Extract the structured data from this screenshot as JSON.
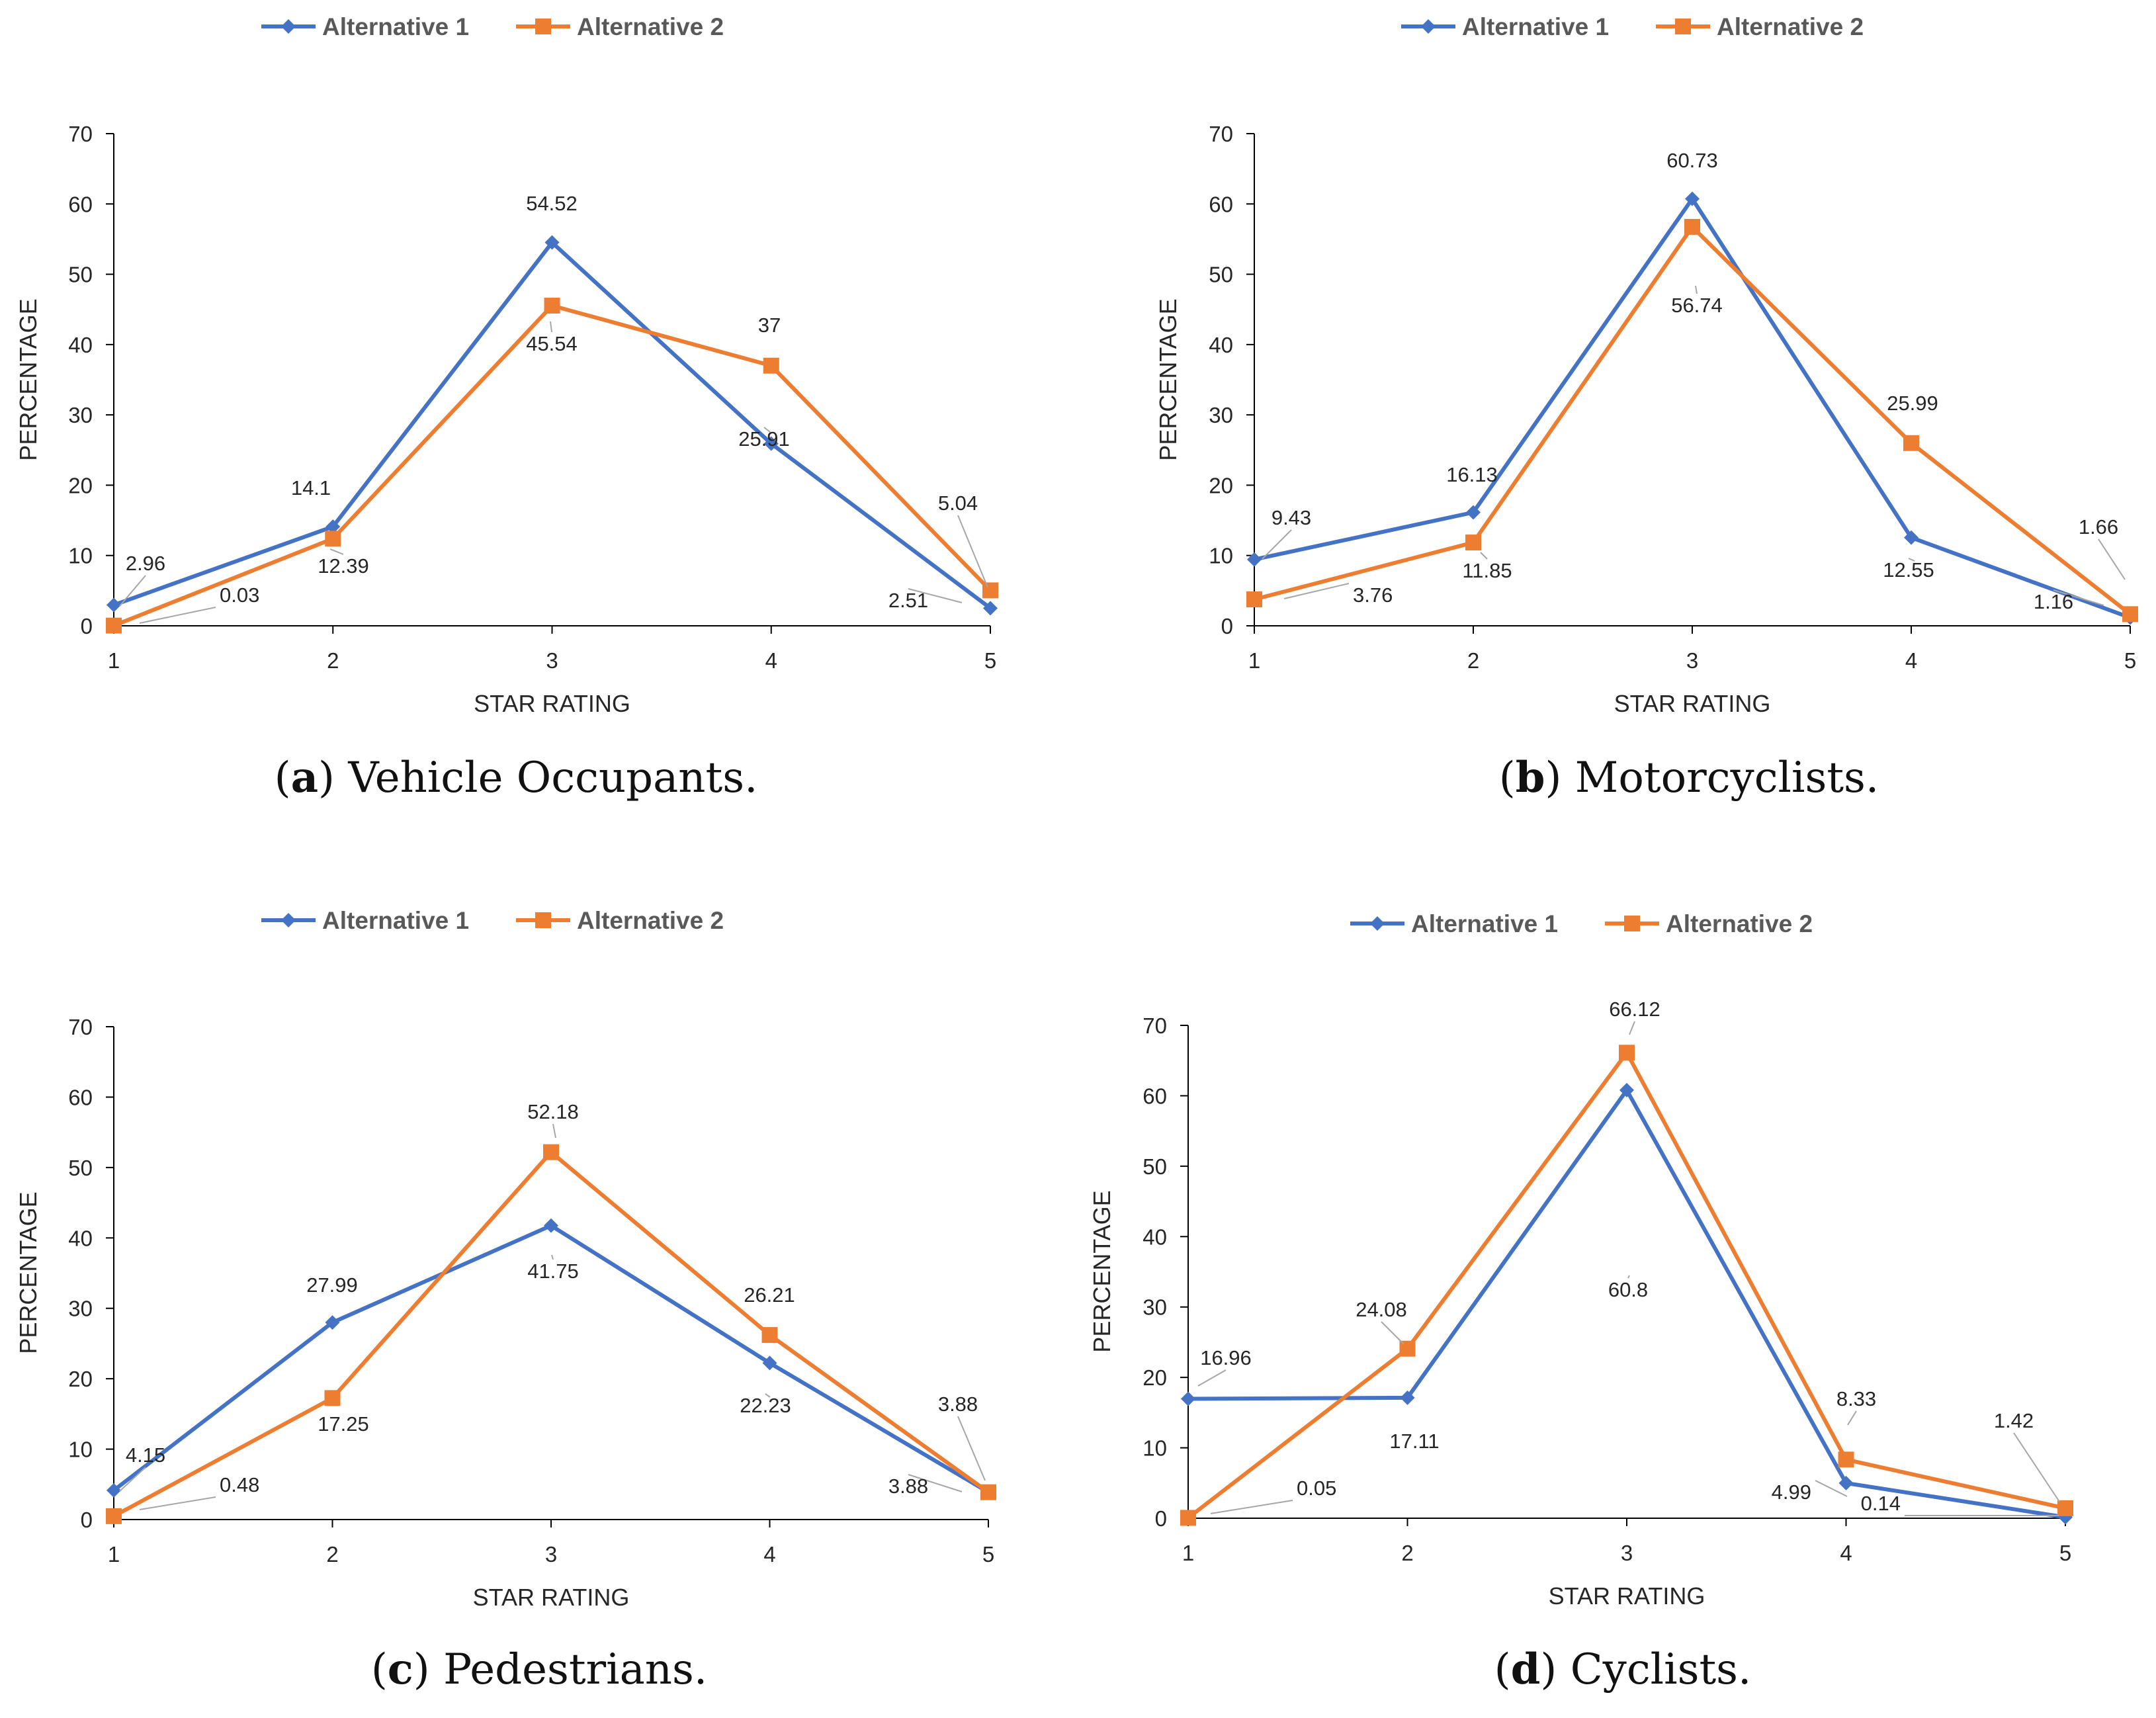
{
  "chart_data": [
    {
      "type": "line",
      "caption_letter": "a",
      "caption_text": "Vehicle Occupants.",
      "xlabel": "STAR RATING",
      "ylabel": "PERCENTAGE",
      "x": [
        1,
        2,
        3,
        4,
        5
      ],
      "ylim": [
        0,
        70
      ],
      "yticks": [
        0,
        10,
        20,
        30,
        40,
        50,
        60,
        70
      ],
      "legend_position": "top",
      "series": [
        {
          "name": "Alternative 1",
          "color": "#4472C4",
          "marker": "diamond",
          "values": [
            2.96,
            14.1,
            54.52,
            25.91,
            2.51
          ],
          "labels": [
            "2.96",
            "14.1",
            "54.52",
            "25.91",
            "2.51"
          ]
        },
        {
          "name": "Alternative 2",
          "color": "#ED7D31",
          "marker": "square",
          "values": [
            0.03,
            12.39,
            45.54,
            37,
            5.04
          ],
          "labels": [
            "0.03",
            "12.39",
            "45.54",
            "37",
            "5.04"
          ]
        }
      ]
    },
    {
      "type": "line",
      "caption_letter": "b",
      "caption_text": "Motorcyclists.",
      "xlabel": "STAR RATING",
      "ylabel": "PERCENTAGE",
      "x": [
        1,
        2,
        3,
        4,
        5
      ],
      "ylim": [
        0,
        70
      ],
      "yticks": [
        0,
        10,
        20,
        30,
        40,
        50,
        60,
        70
      ],
      "legend_position": "top",
      "series": [
        {
          "name": "Alternative 1",
          "color": "#4472C4",
          "marker": "diamond",
          "values": [
            9.43,
            16.13,
            60.73,
            12.55,
            1.16
          ],
          "labels": [
            "9.43",
            "16.13",
            "60.73",
            "12.55",
            "1.16"
          ]
        },
        {
          "name": "Alternative 2",
          "color": "#ED7D31",
          "marker": "square",
          "values": [
            3.76,
            11.85,
            56.74,
            25.99,
            1.66
          ],
          "labels": [
            "3.76",
            "11.85",
            "56.74",
            "25.99",
            "1.66"
          ]
        }
      ]
    },
    {
      "type": "line",
      "caption_letter": "c",
      "caption_text": "Pedestrians.",
      "xlabel": "STAR RATING",
      "ylabel": "PERCENTAGE",
      "x": [
        1,
        2,
        3,
        4,
        5
      ],
      "ylim": [
        0,
        70
      ],
      "yticks": [
        0,
        10,
        20,
        30,
        40,
        50,
        60,
        70
      ],
      "legend_position": "top",
      "series": [
        {
          "name": "Alternative 1",
          "color": "#4472C4",
          "marker": "diamond",
          "values": [
            4.15,
            27.99,
            41.75,
            22.23,
            3.88
          ],
          "labels": [
            "4.15",
            "27.99",
            "41.75",
            "22.23",
            "3.88"
          ]
        },
        {
          "name": "Alternative 2",
          "color": "#ED7D31",
          "marker": "square",
          "values": [
            0.48,
            17.25,
            52.18,
            26.21,
            3.88
          ],
          "labels": [
            "0.48",
            "17.25",
            "52.18",
            "26.21",
            "3.88"
          ]
        }
      ]
    },
    {
      "type": "line",
      "caption_letter": "d",
      "caption_text": "Cyclists.",
      "xlabel": "STAR RATING",
      "ylabel": "PERCENTAGE",
      "x": [
        1,
        2,
        3,
        4,
        5
      ],
      "ylim": [
        0,
        70
      ],
      "yticks": [
        0,
        10,
        20,
        30,
        40,
        50,
        60,
        70
      ],
      "legend_position": "top",
      "series": [
        {
          "name": "Alternative 1",
          "color": "#4472C4",
          "marker": "diamond",
          "values": [
            16.96,
            17.11,
            60.8,
            4.99,
            0.14
          ],
          "labels": [
            "16.96",
            "17.11",
            "60.8",
            "4.99",
            "0.14"
          ]
        },
        {
          "name": "Alternative 2",
          "color": "#ED7D31",
          "marker": "square",
          "values": [
            0.05,
            24.08,
            66.12,
            8.33,
            1.42
          ],
          "labels": [
            "0.05",
            "24.08",
            "66.12",
            "8.33",
            "1.42"
          ]
        }
      ]
    }
  ]
}
